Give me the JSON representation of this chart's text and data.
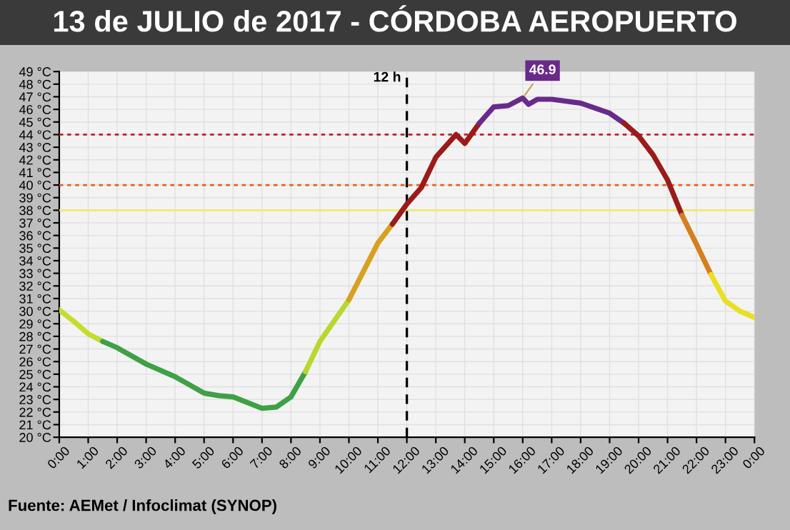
{
  "chart_data": {
    "type": "line",
    "title": "13 de JULIO de 2017 - CÓRDOBA AEROPUERTO",
    "xlim": [
      0,
      24
    ],
    "xticks": [
      {
        "value": 0,
        "label": "0:00"
      },
      {
        "value": 1,
        "label": "1:00"
      },
      {
        "value": 2,
        "label": "2:00"
      },
      {
        "value": 3,
        "label": "3:00"
      },
      {
        "value": 4,
        "label": "4:00"
      },
      {
        "value": 5,
        "label": "5:00"
      },
      {
        "value": 6,
        "label": "6:00"
      },
      {
        "value": 7,
        "label": "7:00"
      },
      {
        "value": 8,
        "label": "8:00"
      },
      {
        "value": 9,
        "label": "9:00"
      },
      {
        "value": 10,
        "label": "10:00"
      },
      {
        "value": 11,
        "label": "11:00"
      },
      {
        "value": 12,
        "label": "12:00"
      },
      {
        "value": 13,
        "label": "13:00"
      },
      {
        "value": 14,
        "label": "14:00"
      },
      {
        "value": 15,
        "label": "15:00"
      },
      {
        "value": 16,
        "label": "16:00"
      },
      {
        "value": 17,
        "label": "17:00"
      },
      {
        "value": 18,
        "label": "18:00"
      },
      {
        "value": 19,
        "label": "19:00"
      },
      {
        "value": 20,
        "label": "20:00"
      },
      {
        "value": 21,
        "label": "21:00"
      },
      {
        "value": 22,
        "label": "22:00"
      },
      {
        "value": 23,
        "label": "23:00"
      },
      {
        "value": 24,
        "label": "0:00"
      }
    ],
    "ylim": [
      20,
      49
    ],
    "yticks": [
      {
        "value": 20,
        "label": "20 °C"
      },
      {
        "value": 21,
        "label": "21 °C"
      },
      {
        "value": 22,
        "label": "22 °C"
      },
      {
        "value": 23,
        "label": "23 °C"
      },
      {
        "value": 24,
        "label": "24 °C"
      },
      {
        "value": 25,
        "label": "25 °C"
      },
      {
        "value": 26,
        "label": "26 °C"
      },
      {
        "value": 27,
        "label": "27 °C"
      },
      {
        "value": 28,
        "label": "28 °C"
      },
      {
        "value": 29,
        "label": "29 °C"
      },
      {
        "value": 30,
        "label": "30 °C"
      },
      {
        "value": 31,
        "label": "31 °C"
      },
      {
        "value": 32,
        "label": "32 °C"
      },
      {
        "value": 33,
        "label": "33 °C"
      },
      {
        "value": 34,
        "label": "34 °C"
      },
      {
        "value": 35,
        "label": "35 °C"
      },
      {
        "value": 36,
        "label": "36 °C"
      },
      {
        "value": 37,
        "label": "37 °C"
      },
      {
        "value": 38,
        "label": "38 °C"
      },
      {
        "value": 39,
        "label": "39 °C"
      },
      {
        "value": 40,
        "label": "40 °C"
      },
      {
        "value": 41,
        "label": "41 °C"
      },
      {
        "value": 42,
        "label": "42 °C"
      },
      {
        "value": 43,
        "label": "43 °C"
      },
      {
        "value": 44,
        "label": "44 °C"
      },
      {
        "value": 45,
        "label": "45 °C"
      },
      {
        "value": 46,
        "label": "46 °C"
      },
      {
        "value": 47,
        "label": "47 °C"
      },
      {
        "value": 48,
        "label": "48 °C"
      },
      {
        "value": 49,
        "label": "49 °C"
      }
    ],
    "grid": true,
    "series": [
      {
        "color": "#c5dc2c",
        "x": [
          0,
          0.5,
          1,
          1.5
        ],
        "values": [
          30.1,
          29.2,
          28.2,
          27.6
        ]
      },
      {
        "color": "#3fa046",
        "x": [
          1.5,
          2,
          3,
          4,
          5,
          5.5,
          6,
          7,
          7.5,
          8,
          8.5
        ],
        "values": [
          27.6,
          27.1,
          25.8,
          24.8,
          23.5,
          23.3,
          23.2,
          22.3,
          22.4,
          23.2,
          25.2
        ]
      },
      {
        "color": "#b8d82c",
        "x": [
          8.5,
          9,
          10
        ],
        "values": [
          25.2,
          27.6,
          30.9
        ]
      },
      {
        "color": "#d8a020",
        "x": [
          10,
          11,
          11.5
        ],
        "values": [
          30.9,
          35.4,
          36.9
        ]
      },
      {
        "color": "#9b1b1b",
        "x": [
          11.5,
          12,
          12.5,
          13,
          13.5,
          13.7,
          14,
          14.5
        ],
        "values": [
          36.9,
          38.5,
          39.8,
          42.2,
          43.5,
          44.0,
          43.3,
          44.9
        ]
      },
      {
        "color": "#6a2a8a",
        "x": [
          14.5,
          15,
          15.5,
          16,
          16.2,
          16.5,
          17,
          18,
          19,
          19.5
        ],
        "values": [
          44.9,
          46.2,
          46.3,
          46.9,
          46.4,
          46.8,
          46.8,
          46.5,
          45.7,
          44.9
        ]
      },
      {
        "color": "#9b1b1b",
        "x": [
          19.5,
          20,
          20.5,
          21,
          21.5
        ],
        "values": [
          44.9,
          43.9,
          42.4,
          40.4,
          37.6
        ]
      },
      {
        "color": "#d4801e",
        "x": [
          21.5,
          22,
          22.5
        ],
        "values": [
          37.6,
          35.3,
          32.9
        ]
      },
      {
        "color": "#e8e020",
        "x": [
          22.5,
          23,
          23.5,
          24
        ],
        "values": [
          32.9,
          30.8,
          30.0,
          29.5
        ]
      }
    ],
    "ref_lines": [
      {
        "axis": "y",
        "value": 44,
        "color": "#c0202a",
        "line_style": "dotted"
      },
      {
        "axis": "y",
        "value": 40,
        "color": "#e06020",
        "line_style": "dotted"
      },
      {
        "axis": "y",
        "value": 38,
        "color": "#f0e870",
        "line_style": "solid"
      },
      {
        "axis": "x",
        "value": 12,
        "label": "12 h",
        "color": "#000000",
        "line_style": "dashed"
      }
    ],
    "annotations": [
      {
        "text": "46.9",
        "x": 16,
        "y": 46.9
      },
      "Fuente: AEMet / Infoclimat (SYNOP)"
    ]
  }
}
